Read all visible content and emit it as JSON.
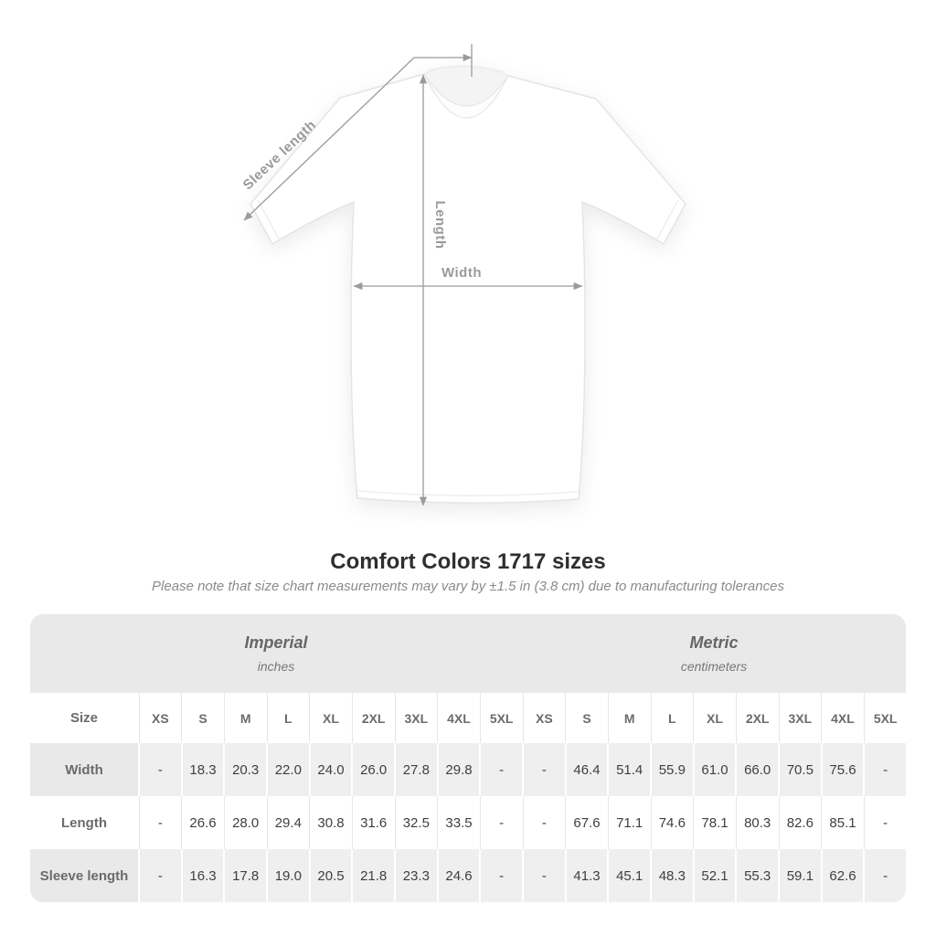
{
  "diagram": {
    "sleeve_label": "Sleeve length",
    "length_label": "Length",
    "width_label": "Width"
  },
  "title": "Comfort Colors 1717 sizes",
  "subtitle": "Please note that size chart measurements may vary by ±1.5 in (3.8 cm) due to manufacturing tolerances",
  "chart_data": {
    "type": "table",
    "title": "Comfort Colors 1717 sizes",
    "section_headers": [
      {
        "label": "Imperial",
        "unit": "inches"
      },
      {
        "label": "Metric",
        "unit": "centimeters"
      }
    ],
    "corner_header": "Size",
    "size_columns": [
      "XS",
      "S",
      "M",
      "L",
      "XL",
      "2XL",
      "3XL",
      "4XL",
      "5XL"
    ],
    "rows": [
      {
        "label": "Width",
        "imperial": [
          "-",
          "18.3",
          "20.3",
          "22.0",
          "24.0",
          "26.0",
          "27.8",
          "29.8",
          "-"
        ],
        "metric": [
          "-",
          "46.4",
          "51.4",
          "55.9",
          "61.0",
          "66.0",
          "70.5",
          "75.6",
          "-"
        ]
      },
      {
        "label": "Length",
        "imperial": [
          "-",
          "26.6",
          "28.0",
          "29.4",
          "30.8",
          "31.6",
          "32.5",
          "33.5",
          "-"
        ],
        "metric": [
          "-",
          "67.6",
          "71.1",
          "74.6",
          "78.1",
          "80.3",
          "82.6",
          "85.1",
          "-"
        ]
      },
      {
        "label": "Sleeve length",
        "imperial": [
          "-",
          "16.3",
          "17.8",
          "19.0",
          "20.5",
          "21.8",
          "23.3",
          "24.6",
          "-"
        ],
        "metric": [
          "-",
          "41.3",
          "45.1",
          "48.3",
          "52.1",
          "55.3",
          "59.1",
          "62.6",
          "-"
        ]
      }
    ]
  },
  "colors": {
    "band_gray": "#e9e9e9",
    "row_gray": "#efefef",
    "label_text": "#6b6b6b",
    "number_text": "#3f3f3f",
    "annotation_gray": "#9b9b9b",
    "title_text": "#2f2f2f",
    "subtitle_text": "#8a8a8a"
  }
}
